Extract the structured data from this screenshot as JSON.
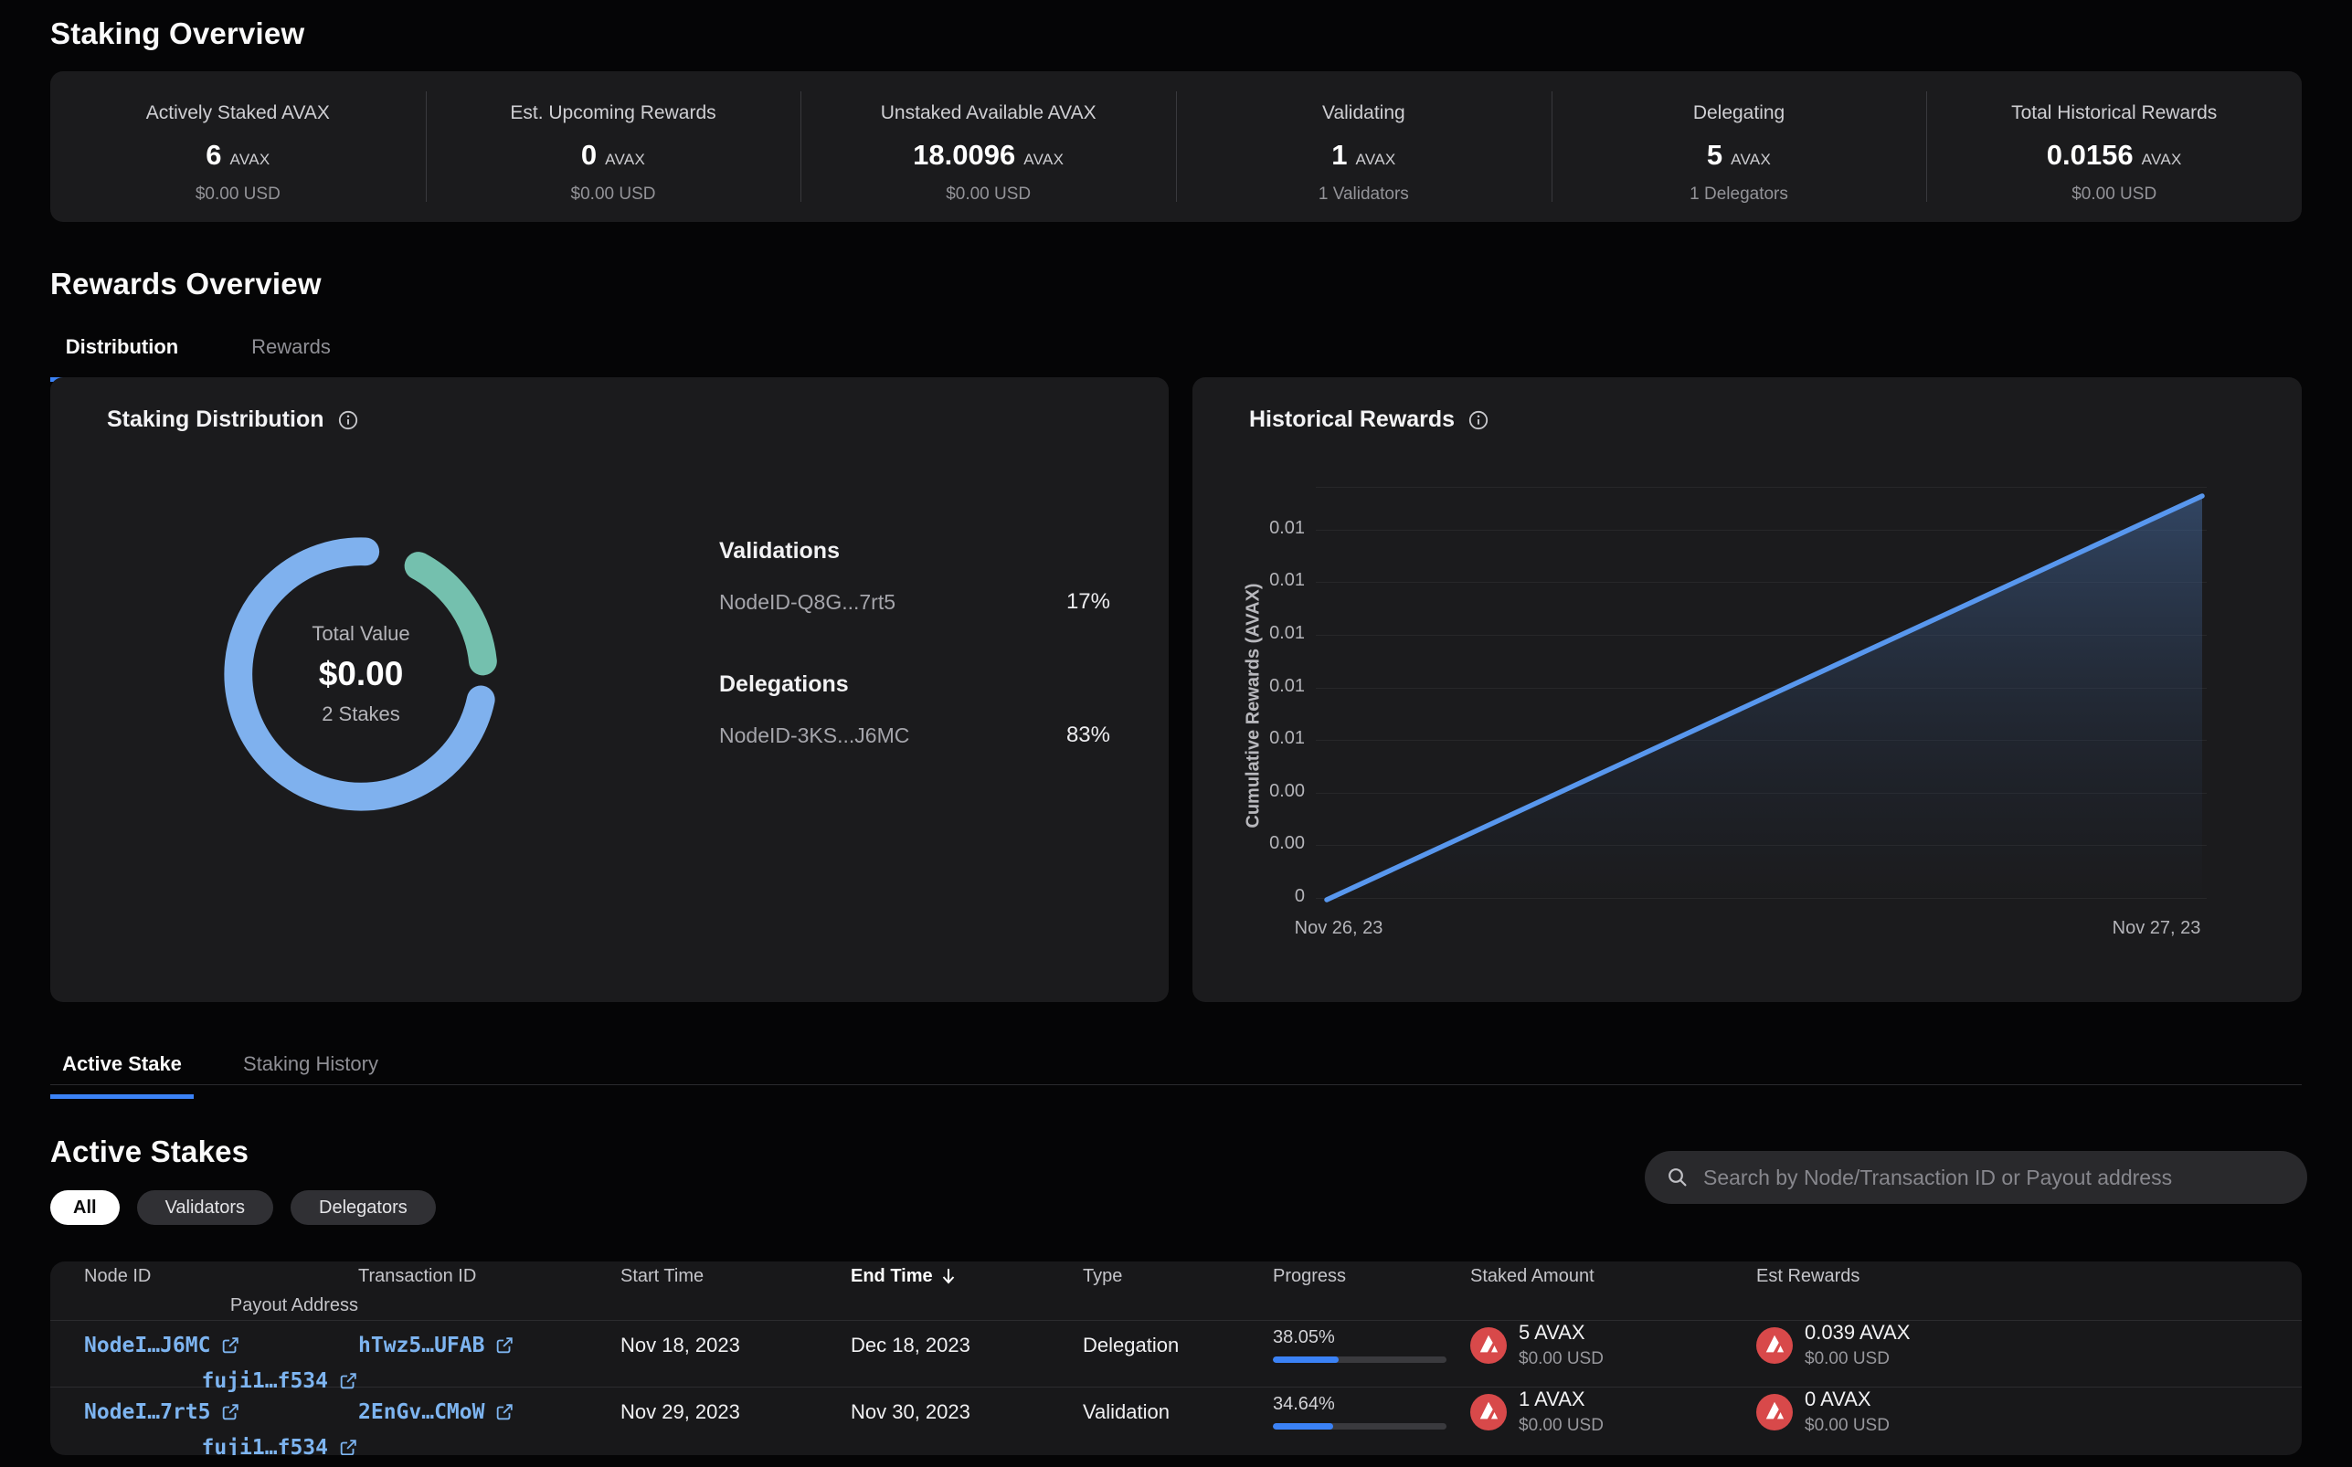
{
  "colors": {
    "accent_blue": "#3b82f6",
    "donut_blue": "#7fb1ee",
    "donut_teal": "#74c0ae",
    "line_blue": "#5897ee",
    "link_blue": "#7db4f0",
    "avax_red": "#d8494a"
  },
  "staking_overview": {
    "title": "Staking Overview",
    "stats": [
      {
        "label": "Actively Staked AVAX",
        "value": "6",
        "unit": "AVAX",
        "sub": "$0.00 USD"
      },
      {
        "label": "Est. Upcoming Rewards",
        "value": "0",
        "unit": "AVAX",
        "sub": "$0.00 USD"
      },
      {
        "label": "Unstaked Available AVAX",
        "value": "18.0096",
        "unit": "AVAX",
        "sub": "$0.00 USD"
      },
      {
        "label": "Validating",
        "value": "1",
        "unit": "AVAX",
        "sub": "1 Validators"
      },
      {
        "label": "Delegating",
        "value": "5",
        "unit": "AVAX",
        "sub": "1 Delegators"
      },
      {
        "label": "Total Historical Rewards",
        "value": "0.0156",
        "unit": "AVAX",
        "sub": "$0.00 USD"
      }
    ]
  },
  "rewards_overview": {
    "title": "Rewards Overview",
    "tabs": {
      "distribution": "Distribution",
      "rewards": "Rewards"
    }
  },
  "distribution_card": {
    "title": "Staking Distribution",
    "chart_data": {
      "type": "donut",
      "center": {
        "label": "Total Value",
        "value": "$0.00",
        "sub": "2 Stakes"
      },
      "segments": [
        {
          "group": "Validations",
          "label": "NodeID-Q8G...7rt5",
          "percent_label": "17%",
          "value": 17,
          "color": "#74c0ae"
        },
        {
          "group": "Delegations",
          "label": "NodeID-3KS...J6MC",
          "percent_label": "83%",
          "value": 83,
          "color": "#7fb1ee"
        }
      ]
    }
  },
  "historical_card": {
    "title": "Historical Rewards",
    "chart_data": {
      "type": "line",
      "ylabel": "Cumulative Rewards (AVAX)",
      "y_ticks_top_to_bottom": [
        "0.01",
        "0.01",
        "0.01",
        "0.01",
        "0.01",
        "0.00",
        "0.00",
        "0"
      ],
      "x_ticks": [
        "Nov 26, 23",
        "Nov 27, 23"
      ],
      "points": [
        {
          "x": "Nov 26, 23",
          "y": 0
        },
        {
          "x": "Nov 27, 23",
          "y": 0.0156
        }
      ],
      "line_color": "#5897ee",
      "area_fill": true,
      "grid": "horizontal"
    }
  },
  "stake_tabs": {
    "active_stake": "Active Stake",
    "staking_history": "Staking History"
  },
  "active_stakes": {
    "title": "Active Stakes",
    "filters": [
      "All",
      "Validators",
      "Delegators"
    ],
    "search_placeholder": "Search by Node/Transaction ID or Payout address",
    "table": {
      "headers": [
        "Node ID",
        "Transaction ID",
        "Start Time",
        "End Time",
        "Type",
        "Progress",
        "Staked Amount",
        "Est Rewards",
        "Payout Address"
      ],
      "sorted_by": "End Time",
      "rows": [
        {
          "node_id": "NodeI…J6MC",
          "tx_id": "hTwz5…UFAB",
          "start": "Nov 18, 2023",
          "end": "Dec 18, 2023",
          "type": "Delegation",
          "progress": "38.05%",
          "staked_amount": "5 AVAX",
          "staked_usd": "$0.00 USD",
          "est_rewards": "0.039 AVAX",
          "est_usd": "$0.00 USD",
          "payout": "fuji1…f534"
        },
        {
          "node_id": "NodeI…7rt5",
          "tx_id": "2EnGv…CMoW",
          "start": "Nov 29, 2023",
          "end": "Nov 30, 2023",
          "type": "Validation",
          "progress": "34.64%",
          "staked_amount": "1 AVAX",
          "staked_usd": "$0.00 USD",
          "est_rewards": "0 AVAX",
          "est_usd": "$0.00 USD",
          "payout": "fuji1…f534"
        }
      ]
    }
  }
}
